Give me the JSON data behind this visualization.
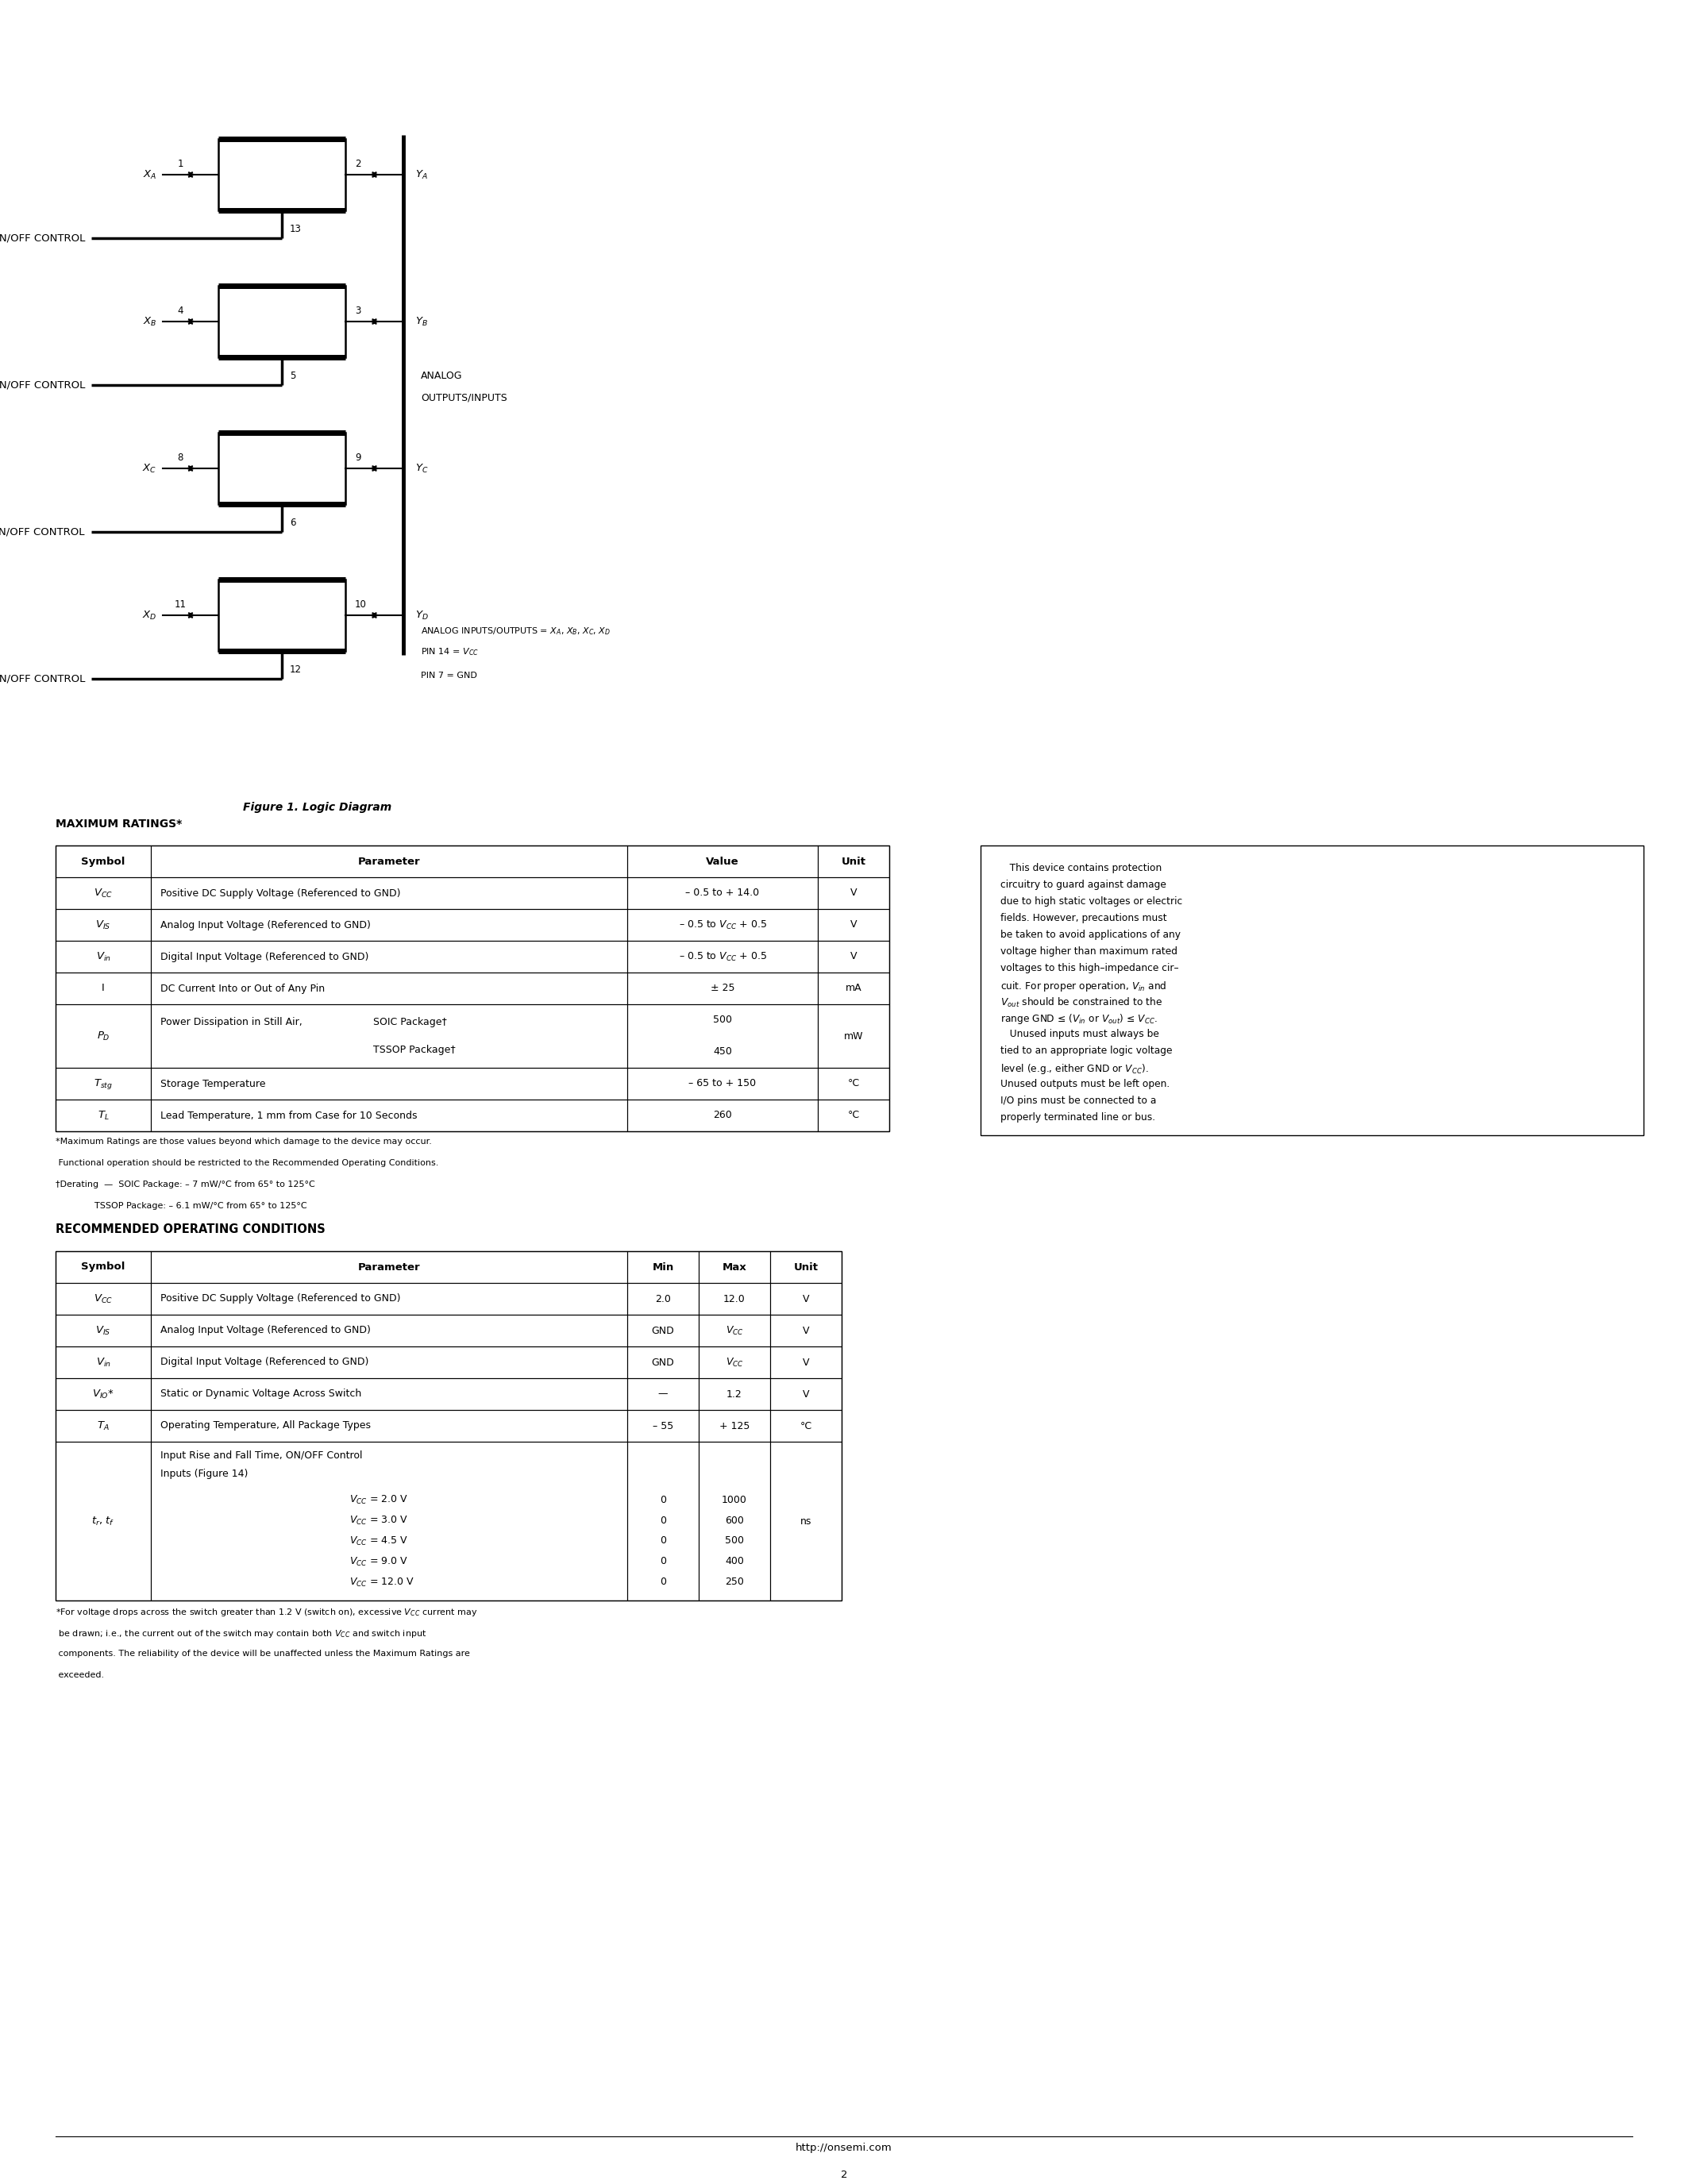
{
  "page_width": 21.26,
  "page_height": 27.51,
  "background_color": "#ffffff",
  "figure_caption": "Figure 1. Logic Diagram",
  "max_ratings_title": "MAXIMUM RATINGS*",
  "rec_op_title": "RECOMMENDED OPERATING CONDITIONS",
  "footer_url": "http://onsemi.com",
  "footer_page": "2",
  "max_ratings_footnotes": [
    "*Maximum Ratings are those values beyond which damage to the device may occur.",
    " Functional operation should be restricted to the Recommended Operating Conditions.",
    "†Derating  —  SOIC Package: – 7 mW/°C from 65° to 125°C",
    "              TSSOP Package: – 6.1 mW/°C from 65° to 125°C"
  ],
  "side_box_lines": [
    "   This device contains protection",
    "circuitry to guard against damage",
    "due to high static voltages or electric",
    "fields. However, precautions must",
    "be taken to avoid applications of any",
    "voltage higher than maximum rated",
    "voltages to this high–impedance cir–",
    "cuit. For proper operation, $V_{in}$ and",
    "$V_{out}$ should be constrained to the",
    "range GND ≤ ($V_{in}$ or $V_{out}$) ≤ $V_{CC}$.",
    "   Unused inputs must always be",
    "tied to an appropriate logic voltage",
    "level (e.g., either GND or $V_{CC}$).",
    "Unused outputs must be left open.",
    "I/O pins must be connected to a",
    "properly terminated line or bus."
  ]
}
